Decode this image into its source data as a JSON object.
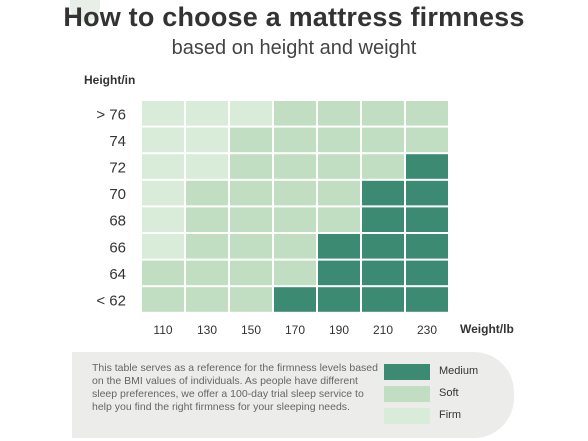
{
  "header": {
    "title": "How to choose a mattress firmness",
    "subtitle": "based on height and weight"
  },
  "colors": {
    "Firm": "#d9ebd9",
    "Soft": "#c2deC2",
    "Medium": "#3d8a72"
  },
  "chart_data": {
    "type": "heatmap",
    "ylabel": "Height/in",
    "xlabel": "Weight/lb",
    "x": [
      "110",
      "130",
      "150",
      "170",
      "190",
      "210",
      "230"
    ],
    "y": [
      "> 76",
      "74",
      "72",
      "70",
      "68",
      "66",
      "64",
      "< 62"
    ],
    "values": [
      [
        "Firm",
        "Firm",
        "Firm",
        "Soft",
        "Soft",
        "Soft",
        "Soft"
      ],
      [
        "Firm",
        "Firm",
        "Soft",
        "Soft",
        "Soft",
        "Soft",
        "Soft"
      ],
      [
        "Firm",
        "Firm",
        "Soft",
        "Soft",
        "Soft",
        "Soft",
        "Medium"
      ],
      [
        "Firm",
        "Soft",
        "Soft",
        "Soft",
        "Soft",
        "Medium",
        "Medium"
      ],
      [
        "Firm",
        "Soft",
        "Soft",
        "Soft",
        "Soft",
        "Medium",
        "Medium"
      ],
      [
        "Firm",
        "Soft",
        "Soft",
        "Soft",
        "Medium",
        "Medium",
        "Medium"
      ],
      [
        "Soft",
        "Soft",
        "Soft",
        "Soft",
        "Medium",
        "Medium",
        "Medium"
      ],
      [
        "Soft",
        "Soft",
        "Soft",
        "Medium",
        "Medium",
        "Medium",
        "Medium"
      ]
    ],
    "legend": [
      "Medium",
      "Soft",
      "Firm"
    ]
  },
  "note": {
    "text": "This table serves as a reference for the firmness levels based on the BMI values of individuals. As people have different sleep preferences, we offer a 100-day trial sleep service to help you find the right firmness for your sleeping needs."
  }
}
